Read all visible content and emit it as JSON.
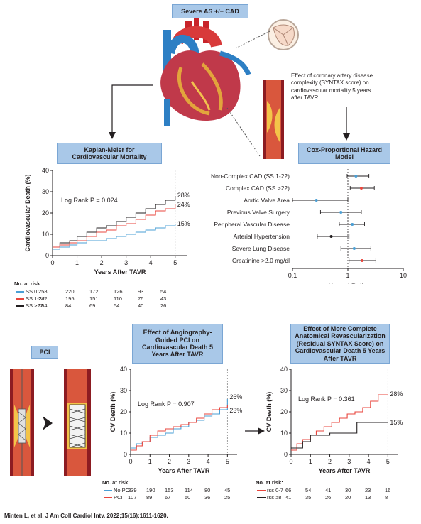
{
  "top_label": "Severe AS +/− CAD",
  "effect_text": "Effect of coronary artery disease complexity (SYNTAX score) on cardiovascular mortality 5 years after TAVR",
  "pci_label": "PCI",
  "citation": "Minten L, et al. J Am Coll Cardiol Intv. 2022;15(16):1611-1620.",
  "km1": {
    "title": "Kaplan-Meier for Cardiovascular Mortality",
    "ylabel": "Cardiovascular Death (%)",
    "xlabel": "Years After TAVR",
    "logrank": "Log Rank P = 0.024",
    "end_labels": [
      "28%",
      "24%",
      "15%"
    ],
    "risk_header": "No. at risk:",
    "risk_rows": [
      {
        "label": "SS 0",
        "color": "#4a9fd5",
        "values": [
          "258",
          "220",
          "172",
          "126",
          "93",
          "54"
        ]
      },
      {
        "label": "SS 1-22",
        "color": "#e8453c",
        "values": [
          "242",
          "195",
          "151",
          "110",
          "76",
          "43"
        ]
      },
      {
        "label": "SS >22",
        "color": "#231f20",
        "values": [
          "104",
          "84",
          "69",
          "54",
          "40",
          "26"
        ]
      }
    ]
  },
  "cox": {
    "title": "Cox-Proportional Hazard Model",
    "xlabel": "Hazard Ratio",
    "ticks": [
      "0.1",
      "1",
      "10"
    ],
    "rows": [
      {
        "label": "Non-Complex CAD (SS 1-22)",
        "hr": 1.4,
        "lo": 0.97,
        "hi": 2.4,
        "color": "#4a9fd5"
      },
      {
        "label": "Complex CAD (SS >22)",
        "hr": 1.75,
        "lo": 1.1,
        "hi": 3.0,
        "color": "#e8453c"
      },
      {
        "label": "Aortic Valve Area",
        "hr": 0.27,
        "lo": 0.1,
        "hi": 1.0,
        "color": "#4a9fd5"
      },
      {
        "label": "Previous Valve Surgery",
        "hr": 0.75,
        "lo": 0.32,
        "hi": 1.75,
        "color": "#4a9fd5"
      },
      {
        "label": "Peripheral Vascular Disease",
        "hr": 1.2,
        "lo": 0.7,
        "hi": 2.0,
        "color": "#4a9fd5"
      },
      {
        "label": "Arterial Hypertension",
        "hr": 0.5,
        "lo": 0.28,
        "hi": 1.05,
        "color": "#231f20"
      },
      {
        "label": "Severe Lung Disease",
        "hr": 1.3,
        "lo": 0.75,
        "hi": 2.6,
        "color": "#4a9fd5"
      },
      {
        "label": "Creatinine >2.0 mg/dl",
        "hr": 1.8,
        "lo": 1.05,
        "hi": 3.2,
        "color": "#e8453c"
      }
    ]
  },
  "km2": {
    "title": "Effect of Angiography-Guided PCI on Cardiovascular Death 5 Years After TAVR",
    "ylabel": "CV Death (%)",
    "xlabel": "Years After TAVR",
    "logrank": "Log Rank P = 0.907",
    "end_labels": [
      "26%",
      "23%"
    ],
    "risk_header": "No. at risk:",
    "risk_rows": [
      {
        "label": "No PCI",
        "color": "#4a9fd5",
        "values": [
          "239",
          "190",
          "153",
          "114",
          "80",
          "45"
        ]
      },
      {
        "label": "PCI",
        "color": "#e8453c",
        "values": [
          "107",
          "89",
          "67",
          "50",
          "36",
          "25"
        ]
      }
    ]
  },
  "km3": {
    "title": "Effect of More Complete Anatomical Revascularization (Residual SYNTAX Score) on Cardiovascular Death 5 Years After TAVR",
    "ylabel": "CV Death (%)",
    "xlabel": "Years After TAVR",
    "logrank": "Log Rank P = 0.361",
    "end_labels": [
      "28%",
      "15%"
    ],
    "risk_header": "No. at risk:",
    "risk_rows": [
      {
        "label": "rss 0-7",
        "color": "#e8453c",
        "values": [
          "66",
          "54",
          "41",
          "30",
          "23",
          "16"
        ]
      },
      {
        "label": "rss ≥8",
        "color": "#231f20",
        "values": [
          "41",
          "35",
          "26",
          "20",
          "13",
          "8"
        ]
      }
    ]
  },
  "axis": {
    "y_ticks": [
      "0",
      "10",
      "20",
      "30",
      "40"
    ],
    "x_ticks": [
      "0",
      "1",
      "2",
      "3",
      "4",
      "5"
    ]
  },
  "chart_data": [
    {
      "type": "line",
      "title": "Kaplan-Meier for Cardiovascular Mortality",
      "xlabel": "Years After TAVR",
      "ylabel": "Cardiovascular Death (%)",
      "xlim": [
        0,
        5.5
      ],
      "ylim": [
        0,
        40
      ],
      "series": [
        {
          "name": "SS >22",
          "color": "#231f20",
          "x": [
            0,
            0.3,
            0.7,
            1.0,
            1.4,
            1.8,
            2.2,
            2.6,
            3.0,
            3.4,
            3.8,
            4.2,
            4.6,
            5.0
          ],
          "y": [
            4,
            6,
            7,
            9,
            11,
            13,
            14,
            16,
            18,
            20,
            22,
            24,
            26,
            28
          ]
        },
        {
          "name": "SS 1-22",
          "color": "#e8453c",
          "x": [
            0,
            0.3,
            0.7,
            1.0,
            1.4,
            1.8,
            2.2,
            2.6,
            3.0,
            3.4,
            3.8,
            4.2,
            4.6,
            5.0
          ],
          "y": [
            4,
            5,
            6,
            7,
            9,
            11,
            12,
            14,
            15,
            17,
            19,
            21,
            22,
            24
          ]
        },
        {
          "name": "SS 0",
          "color": "#4a9fd5",
          "x": [
            0,
            0.3,
            0.7,
            1.0,
            1.4,
            1.8,
            2.2,
            2.6,
            3.0,
            3.4,
            3.8,
            4.2,
            4.6,
            5.0
          ],
          "y": [
            3,
            4,
            5,
            6,
            7,
            7,
            8,
            9,
            10,
            11,
            12,
            13,
            14,
            15
          ]
        }
      ]
    },
    {
      "type": "line",
      "title": "Effect of Angiography-Guided PCI on Cardiovascular Death 5 Years After TAVR",
      "xlabel": "Years After TAVR",
      "ylabel": "CV Death (%)",
      "xlim": [
        0,
        5.5
      ],
      "ylim": [
        0,
        40
      ],
      "series": [
        {
          "name": "No PCI",
          "color": "#4a9fd5",
          "x": [
            0,
            0.3,
            0.6,
            1.0,
            1.4,
            1.8,
            2.2,
            2.6,
            3.0,
            3.4,
            3.8,
            4.2,
            4.6,
            5.0
          ],
          "y": [
            3,
            5,
            6,
            8,
            9,
            10,
            12,
            13,
            15,
            16,
            18,
            19,
            21,
            26
          ]
        },
        {
          "name": "PCI",
          "color": "#e8453c",
          "x": [
            0,
            0.3,
            0.6,
            1.0,
            1.4,
            1.8,
            2.2,
            2.6,
            3.0,
            3.4,
            3.8,
            4.2,
            4.6,
            5.0
          ],
          "y": [
            2,
            4,
            6,
            9,
            11,
            12,
            13,
            14,
            15,
            17,
            19,
            21,
            22,
            23
          ]
        }
      ]
    },
    {
      "type": "line",
      "title": "Effect of More Complete Anatomical Revascularization (Residual SYNTAX Score) on Cardiovascular Death 5 Years After TAVR",
      "xlabel": "Years After TAVR",
      "ylabel": "CV Death (%)",
      "xlim": [
        0,
        5.5
      ],
      "ylim": [
        0,
        40
      ],
      "series": [
        {
          "name": "rss 0-7",
          "color": "#e8453c",
          "x": [
            0,
            0.3,
            0.6,
            1.0,
            1.3,
            1.7,
            2.1,
            2.5,
            2.9,
            3.3,
            3.7,
            4.1,
            4.5,
            5.0
          ],
          "y": [
            2,
            5,
            7,
            9,
            11,
            13,
            15,
            17,
            19,
            20,
            22,
            25,
            28,
            28
          ]
        },
        {
          "name": "rss ≥8",
          "color": "#231f20",
          "x": [
            0,
            0.3,
            0.6,
            1.0,
            2.0,
            3.0,
            3.4,
            4.0,
            5.0
          ],
          "y": [
            3,
            3,
            6,
            9,
            10,
            10,
            15,
            15,
            15
          ]
        }
      ]
    }
  ]
}
